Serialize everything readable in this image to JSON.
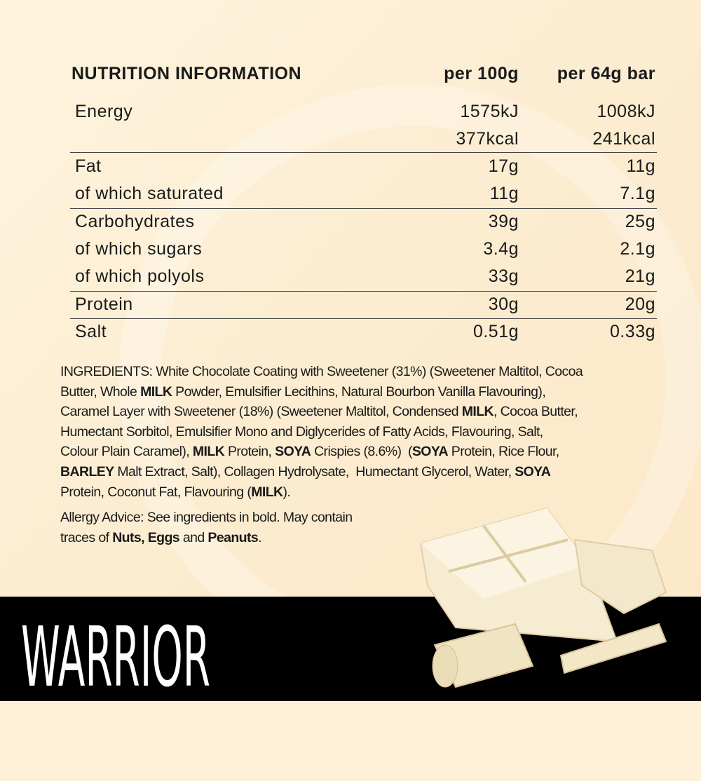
{
  "nutrition": {
    "title": "NUTRITION INFORMATION",
    "col1": "per 100g",
    "col2": "per 64g bar",
    "rows": [
      {
        "label": "Energy",
        "per100": "1575kJ",
        "perBar": "1008kJ"
      },
      {
        "label": "",
        "per100": "377kcal",
        "perBar": "241kcal"
      },
      {
        "label": "Fat",
        "per100": "17g",
        "perBar": "11g"
      },
      {
        "label": "of which saturated",
        "per100": "11g",
        "perBar": "7.1g"
      },
      {
        "label": "Carbohydrates",
        "per100": "39g",
        "perBar": "25g"
      },
      {
        "label": "of which sugars",
        "per100": "3.4g",
        "perBar": "2.1g"
      },
      {
        "label": "of which polyols",
        "per100": "33g",
        "perBar": "21g"
      },
      {
        "label": "Protein",
        "per100": "30g",
        "perBar": "20g"
      },
      {
        "label": "Salt",
        "per100": "0.51g",
        "perBar": "0.33g"
      }
    ]
  },
  "ingredients": [
    [
      {
        "t": "INGREDIENTS: White Chocolate Coating with Sweetener (31%) (Sweetener Maltitol, Cocoa"
      }
    ],
    [
      {
        "t": "Butter, Whole "
      },
      {
        "t": "MILK",
        "b": true
      },
      {
        "t": " Powder, Emulsifier Lecithins, Natural Bourbon Vanilla Flavouring),"
      }
    ],
    [
      {
        "t": "Caramel Layer with Sweetener (18%) (Sweetener Maltitol, Condensed "
      },
      {
        "t": "MILK",
        "b": true
      },
      {
        "t": ", Cocoa Butter,"
      }
    ],
    [
      {
        "t": "Humectant Sorbitol, Emulsifier Mono and Diglycerides of Fatty Acids, Flavouring, Salt,"
      }
    ],
    [
      {
        "t": "Colour Plain Caramel), "
      },
      {
        "t": "MILK",
        "b": true
      },
      {
        "t": " Protein, "
      },
      {
        "t": "SOYA",
        "b": true
      },
      {
        "t": " Crispies (8.6%)  ("
      },
      {
        "t": "SOYA",
        "b": true
      },
      {
        "t": " Protein, Rice Flour,"
      }
    ],
    [
      {
        "t": "BARLEY",
        "b": true
      },
      {
        "t": " Malt Extract, Salt), Collagen Hydrolysate,  Humectant Glycerol, Water, "
      },
      {
        "t": "SOYA",
        "b": true
      }
    ],
    [
      {
        "t": "Protein, Coconut Fat, Flavouring ("
      },
      {
        "t": "MILK",
        "b": true
      },
      {
        "t": ")."
      }
    ]
  ],
  "allergy": [
    [
      {
        "t": "Allergy Advice: See ingredients in bold. May contain"
      }
    ],
    [
      {
        "t": "traces of "
      },
      {
        "t": "Nuts, Eggs",
        "b": true
      },
      {
        "t": " and "
      },
      {
        "t": "Peanuts",
        "b": true
      },
      {
        "t": "."
      }
    ]
  ],
  "brand": {
    "logo": "WARRIOR"
  },
  "colors": {
    "background": "#fdf0d6",
    "band": "#000000",
    "text": "#1a1a1a"
  }
}
